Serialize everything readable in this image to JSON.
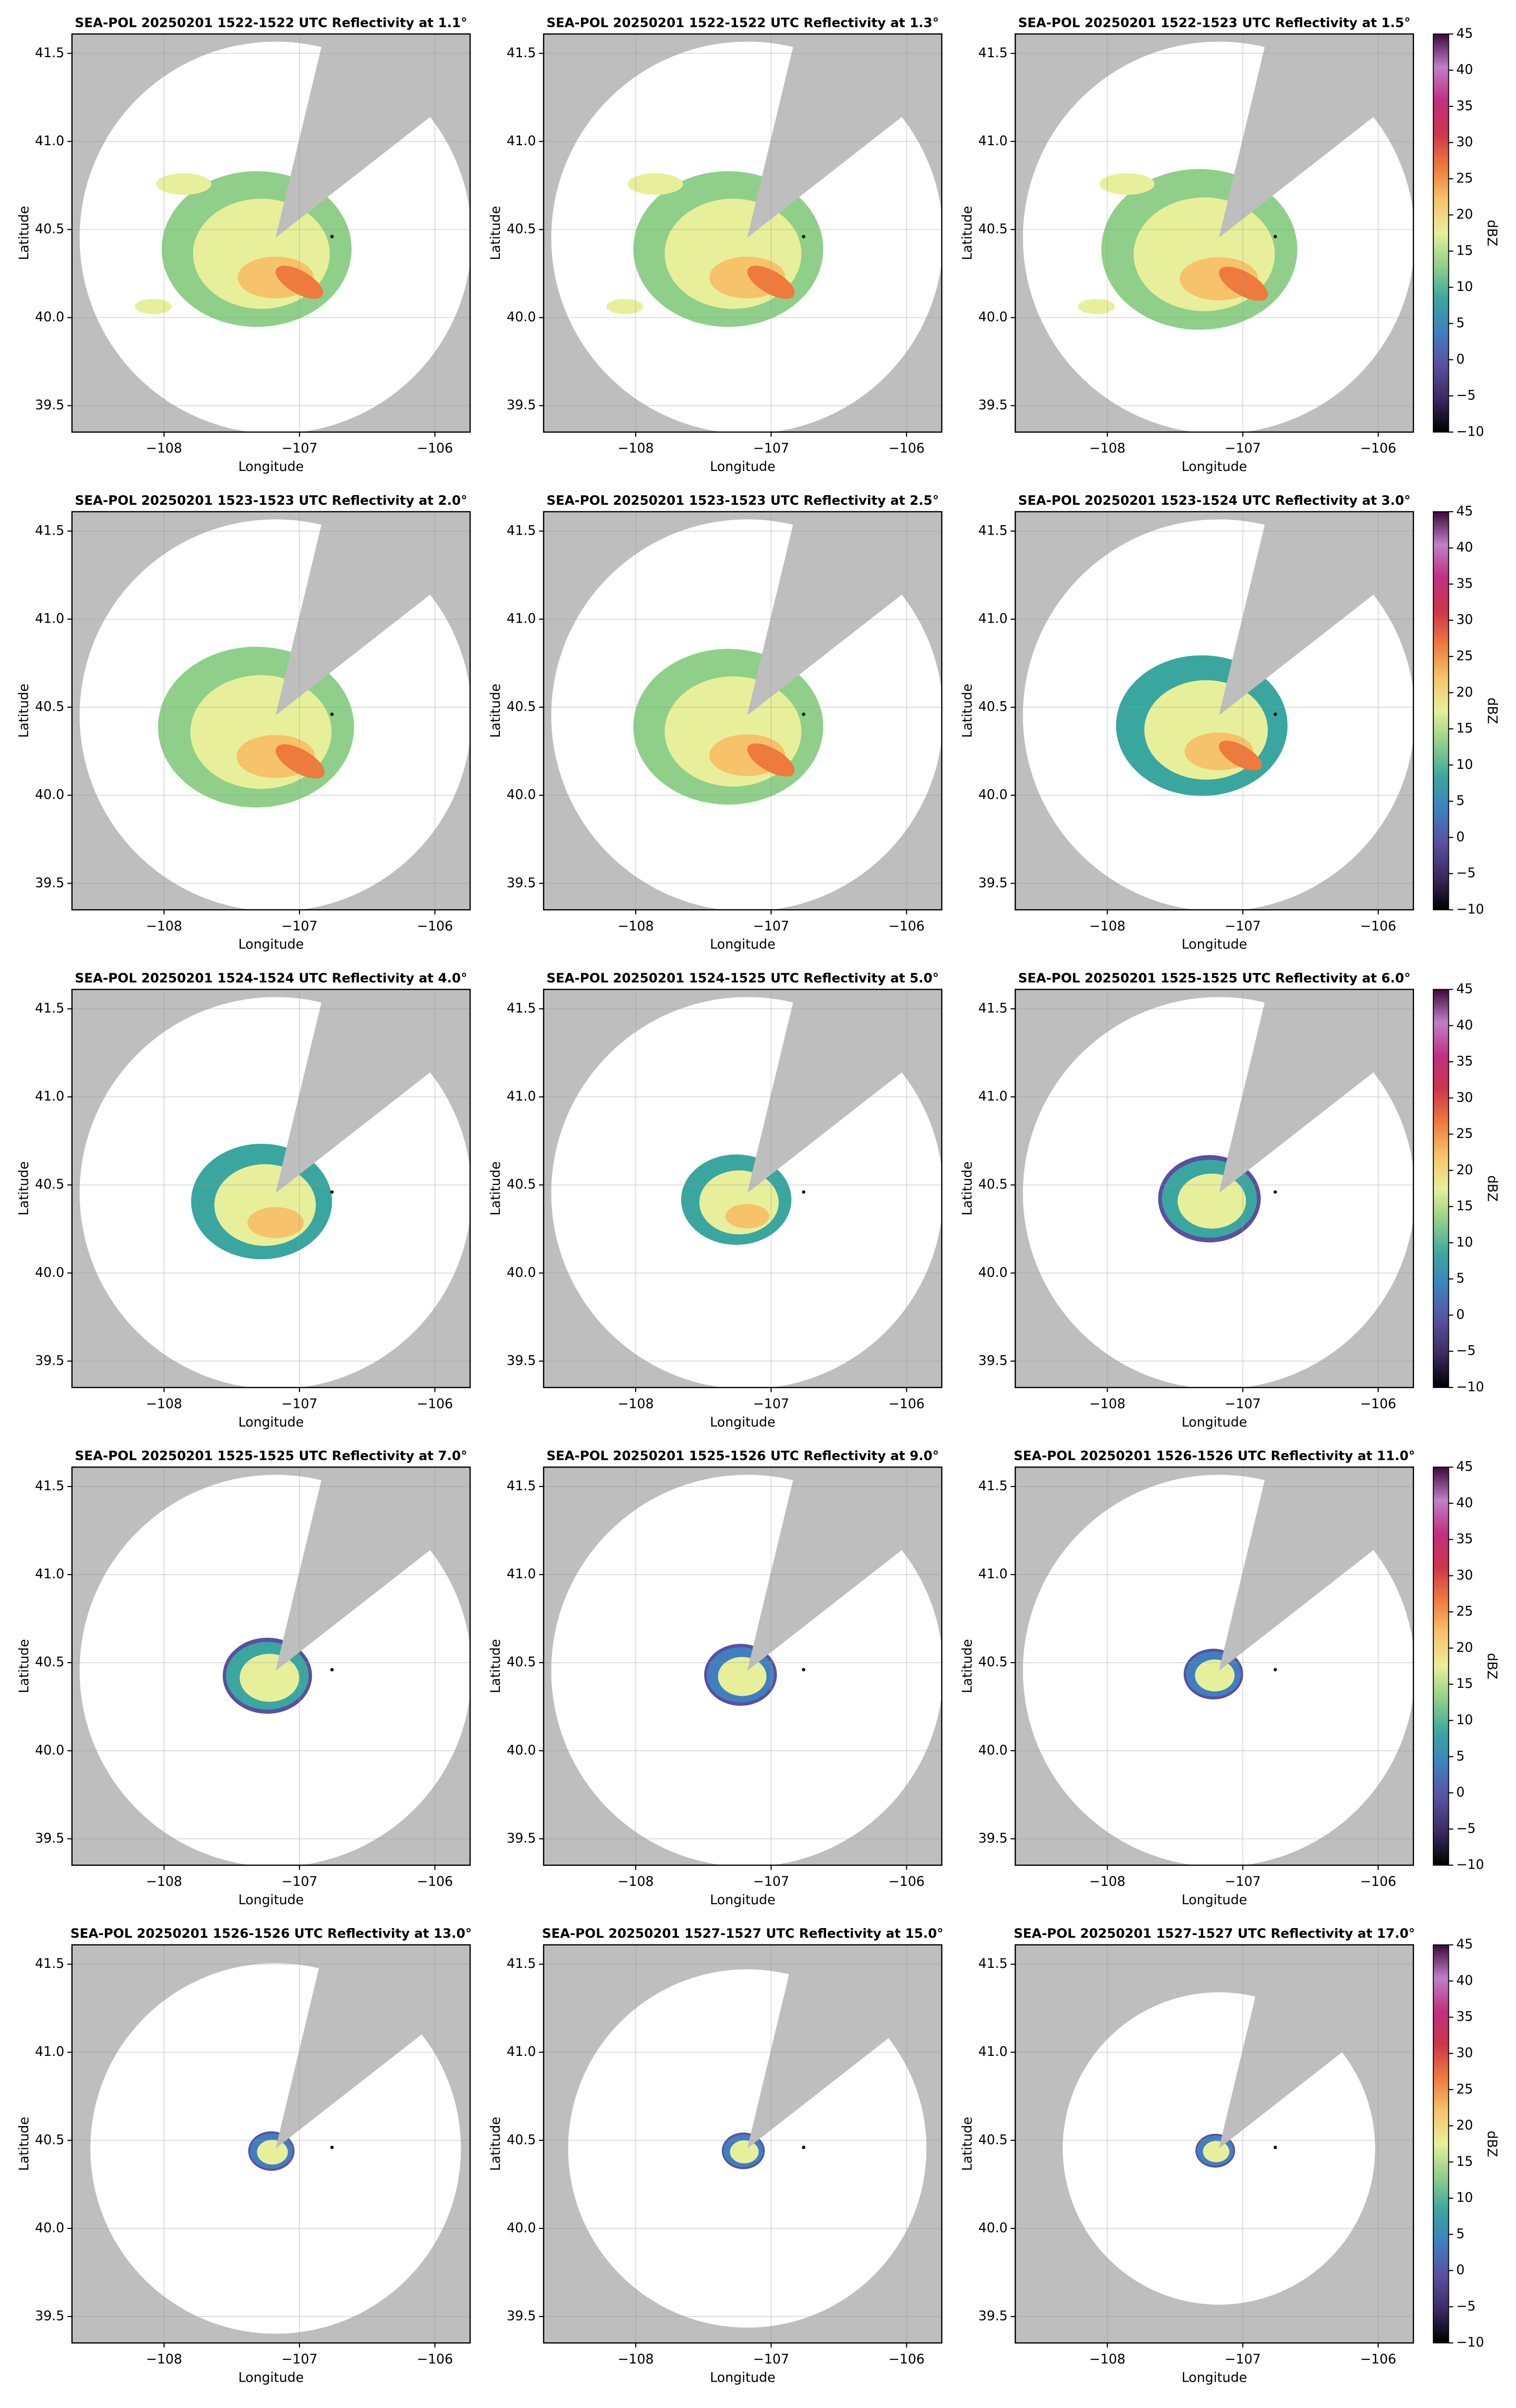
{
  "chart_data": [
    {
      "type": "ppi",
      "title": "SEA-POL 20250201 1522-1522 UTC Reflectivity at 1.1°",
      "xlabel": "Longitude",
      "ylabel": "Latitude",
      "xlim": [
        -108.68,
        -105.74
      ],
      "ylim": [
        39.35,
        41.61
      ],
      "xticks": [
        {
          "value": -108,
          "label": "−108"
        },
        {
          "value": -107,
          "label": "−107"
        },
        {
          "value": -106,
          "label": "−106"
        }
      ],
      "yticks": [
        39.5,
        {
          "value": 40,
          "label": "40.0"
        },
        40.5,
        {
          "value": 41,
          "label": "41.0"
        },
        41.5
      ],
      "grid": true,
      "background": "#bebebe",
      "marker": {
        "x": -106.76,
        "y": 40.46,
        "color": "#000000"
      }
    },
    {
      "type": "ppi",
      "title": "SEA-POL 20250201 1522-1522 UTC Reflectivity at 1.3°",
      "xlabel": "Longitude",
      "ylabel": "Latitude",
      "xlim": [
        -108.68,
        -105.74
      ],
      "ylim": [
        39.35,
        41.61
      ],
      "xticks": [
        {
          "value": -108,
          "label": "−108"
        },
        {
          "value": -107,
          "label": "−107"
        },
        {
          "value": -106,
          "label": "−106"
        }
      ],
      "yticks": [
        39.5,
        {
          "value": 40,
          "label": "40.0"
        },
        40.5,
        {
          "value": 41,
          "label": "41.0"
        },
        41.5
      ],
      "grid": true,
      "background": "#bebebe",
      "marker": {
        "x": -106.76,
        "y": 40.46,
        "color": "#000000"
      }
    },
    {
      "type": "ppi",
      "title": "SEA-POL 20250201 1522-1523 UTC Reflectivity at 1.5°",
      "xlabel": "Longitude",
      "ylabel": "Latitude",
      "xlim": [
        -108.68,
        -105.74
      ],
      "ylim": [
        39.35,
        41.61
      ],
      "xticks": [
        {
          "value": -108,
          "label": "−108"
        },
        {
          "value": -107,
          "label": "−107"
        },
        {
          "value": -106,
          "label": "−106"
        }
      ],
      "yticks": [
        39.5,
        {
          "value": 40,
          "label": "40.0"
        },
        40.5,
        {
          "value": 41,
          "label": "41.0"
        },
        41.5
      ],
      "grid": true,
      "background": "#bebebe",
      "marker": {
        "x": -106.76,
        "y": 40.46,
        "color": "#000000"
      },
      "colorbar": {
        "label": "dBZ",
        "lim": [
          -10,
          45
        ],
        "ticks": [
          {
            "value": -10,
            "label": "−10"
          },
          {
            "value": -5,
            "label": "−5"
          },
          0,
          5,
          10,
          15,
          20,
          25,
          30,
          35,
          40,
          45
        ],
        "colors": [
          "#000000",
          "#3b2a5e",
          "#5a4fa0",
          "#3f7fbf",
          "#3aa6a0",
          "#8fcf8a",
          "#e8ef9a",
          "#f6c36a",
          "#ee7a3e",
          "#d0344a",
          "#c0307f",
          "#c07fc9",
          "#3b0a3a"
        ]
      }
    },
    {
      "type": "ppi",
      "title": "SEA-POL 20250201 1523-1523 UTC Reflectivity at 2.0°",
      "xlabel": "Longitude",
      "ylabel": "Latitude",
      "xlim": [
        -108.68,
        -105.74
      ],
      "ylim": [
        39.35,
        41.61
      ],
      "xticks": [
        {
          "value": -108,
          "label": "−108"
        },
        {
          "value": -107,
          "label": "−107"
        },
        {
          "value": -106,
          "label": "−106"
        }
      ],
      "yticks": [
        39.5,
        {
          "value": 40,
          "label": "40.0"
        },
        40.5,
        {
          "value": 41,
          "label": "41.0"
        },
        41.5
      ],
      "grid": true,
      "background": "#bebebe",
      "marker": {
        "x": -106.76,
        "y": 40.46,
        "color": "#000000"
      }
    },
    {
      "type": "ppi",
      "title": "SEA-POL 20250201 1523-1523 UTC Reflectivity at 2.5°",
      "xlabel": "Longitude",
      "ylabel": "Latitude",
      "xlim": [
        -108.68,
        -105.74
      ],
      "ylim": [
        39.35,
        41.61
      ],
      "xticks": [
        {
          "value": -108,
          "label": "−108"
        },
        {
          "value": -107,
          "label": "−107"
        },
        {
          "value": -106,
          "label": "−106"
        }
      ],
      "yticks": [
        39.5,
        {
          "value": 40,
          "label": "40.0"
        },
        40.5,
        {
          "value": 41,
          "label": "41.0"
        },
        41.5
      ],
      "grid": true,
      "background": "#bebebe",
      "marker": {
        "x": -106.76,
        "y": 40.46,
        "color": "#000000"
      }
    },
    {
      "type": "ppi",
      "title": "SEA-POL 20250201 1523-1524 UTC Reflectivity at 3.0°",
      "xlabel": "Longitude",
      "ylabel": "Latitude",
      "xlim": [
        -108.68,
        -105.74
      ],
      "ylim": [
        39.35,
        41.61
      ],
      "xticks": [
        {
          "value": -108,
          "label": "−108"
        },
        {
          "value": -107,
          "label": "−107"
        },
        {
          "value": -106,
          "label": "−106"
        }
      ],
      "yticks": [
        39.5,
        {
          "value": 40,
          "label": "40.0"
        },
        40.5,
        {
          "value": 41,
          "label": "41.0"
        },
        41.5
      ],
      "grid": true,
      "background": "#bebebe",
      "marker": {
        "x": -106.76,
        "y": 40.46,
        "color": "#000000"
      },
      "colorbar": {
        "label": "dBZ",
        "lim": [
          -10,
          45
        ],
        "ticks": [
          {
            "value": -10,
            "label": "−10"
          },
          {
            "value": -5,
            "label": "−5"
          },
          0,
          5,
          10,
          15,
          20,
          25,
          30,
          35,
          40,
          45
        ],
        "colors": [
          "#000000",
          "#3b2a5e",
          "#5a4fa0",
          "#3f7fbf",
          "#3aa6a0",
          "#8fcf8a",
          "#e8ef9a",
          "#f6c36a",
          "#ee7a3e",
          "#d0344a",
          "#c0307f",
          "#c07fc9",
          "#3b0a3a"
        ]
      }
    },
    {
      "type": "ppi",
      "title": "SEA-POL 20250201 1524-1524 UTC Reflectivity at 4.0°",
      "xlabel": "Longitude",
      "ylabel": "Latitude",
      "xlim": [
        -108.68,
        -105.74
      ],
      "ylim": [
        39.35,
        41.61
      ],
      "xticks": [
        {
          "value": -108,
          "label": "−108"
        },
        {
          "value": -107,
          "label": "−107"
        },
        {
          "value": -106,
          "label": "−106"
        }
      ],
      "yticks": [
        39.5,
        {
          "value": 40,
          "label": "40.0"
        },
        40.5,
        {
          "value": 41,
          "label": "41.0"
        },
        41.5
      ],
      "grid": true,
      "background": "#bebebe",
      "marker": {
        "x": -106.76,
        "y": 40.46,
        "color": "#000000"
      }
    },
    {
      "type": "ppi",
      "title": "SEA-POL 20250201 1524-1525 UTC Reflectivity at 5.0°",
      "xlabel": "Longitude",
      "ylabel": "Latitude",
      "xlim": [
        -108.68,
        -105.74
      ],
      "ylim": [
        39.35,
        41.61
      ],
      "xticks": [
        {
          "value": -108,
          "label": "−108"
        },
        {
          "value": -107,
          "label": "−107"
        },
        {
          "value": -106,
          "label": "−106"
        }
      ],
      "yticks": [
        39.5,
        {
          "value": 40,
          "label": "40.0"
        },
        40.5,
        {
          "value": 41,
          "label": "41.0"
        },
        41.5
      ],
      "grid": true,
      "background": "#bebebe",
      "marker": {
        "x": -106.76,
        "y": 40.46,
        "color": "#000000"
      }
    },
    {
      "type": "ppi",
      "title": "SEA-POL 20250201 1525-1525 UTC Reflectivity at 6.0°",
      "xlabel": "Longitude",
      "ylabel": "Latitude",
      "xlim": [
        -108.68,
        -105.74
      ],
      "ylim": [
        39.35,
        41.61
      ],
      "xticks": [
        {
          "value": -108,
          "label": "−108"
        },
        {
          "value": -107,
          "label": "−107"
        },
        {
          "value": -106,
          "label": "−106"
        }
      ],
      "yticks": [
        39.5,
        {
          "value": 40,
          "label": "40.0"
        },
        40.5,
        {
          "value": 41,
          "label": "41.0"
        },
        41.5
      ],
      "grid": true,
      "background": "#bebebe",
      "marker": {
        "x": -106.76,
        "y": 40.46,
        "color": "#000000"
      },
      "colorbar": {
        "label": "dBZ",
        "lim": [
          -10,
          45
        ],
        "ticks": [
          {
            "value": -10,
            "label": "−10"
          },
          {
            "value": -5,
            "label": "−5"
          },
          0,
          5,
          10,
          15,
          20,
          25,
          30,
          35,
          40,
          45
        ],
        "colors": [
          "#000000",
          "#3b2a5e",
          "#5a4fa0",
          "#3f7fbf",
          "#3aa6a0",
          "#8fcf8a",
          "#e8ef9a",
          "#f6c36a",
          "#ee7a3e",
          "#d0344a",
          "#c0307f",
          "#c07fc9",
          "#3b0a3a"
        ]
      }
    },
    {
      "type": "ppi",
      "title": "SEA-POL 20250201 1525-1525 UTC Reflectivity at 7.0°",
      "xlabel": "Longitude",
      "ylabel": "Latitude",
      "xlim": [
        -108.68,
        -105.74
      ],
      "ylim": [
        39.35,
        41.61
      ],
      "xticks": [
        {
          "value": -108,
          "label": "−108"
        },
        {
          "value": -107,
          "label": "−107"
        },
        {
          "value": -106,
          "label": "−106"
        }
      ],
      "yticks": [
        39.5,
        {
          "value": 40,
          "label": "40.0"
        },
        40.5,
        {
          "value": 41,
          "label": "41.0"
        },
        41.5
      ],
      "grid": true,
      "background": "#bebebe",
      "marker": {
        "x": -106.76,
        "y": 40.46,
        "color": "#000000"
      }
    },
    {
      "type": "ppi",
      "title": "SEA-POL 20250201 1525-1526 UTC Reflectivity at 9.0°",
      "xlabel": "Longitude",
      "ylabel": "Latitude",
      "xlim": [
        -108.68,
        -105.74
      ],
      "ylim": [
        39.35,
        41.61
      ],
      "xticks": [
        {
          "value": -108,
          "label": "−108"
        },
        {
          "value": -107,
          "label": "−107"
        },
        {
          "value": -106,
          "label": "−106"
        }
      ],
      "yticks": [
        39.5,
        {
          "value": 40,
          "label": "40.0"
        },
        40.5,
        {
          "value": 41,
          "label": "41.0"
        },
        41.5
      ],
      "grid": true,
      "background": "#bebebe",
      "marker": {
        "x": -106.76,
        "y": 40.46,
        "color": "#000000"
      }
    },
    {
      "type": "ppi",
      "title": "SEA-POL 20250201 1526-1526 UTC Reflectivity at 11.0°",
      "xlabel": "Longitude",
      "ylabel": "Latitude",
      "xlim": [
        -108.68,
        -105.74
      ],
      "ylim": [
        39.35,
        41.61
      ],
      "xticks": [
        {
          "value": -108,
          "label": "−108"
        },
        {
          "value": -107,
          "label": "−107"
        },
        {
          "value": -106,
          "label": "−106"
        }
      ],
      "yticks": [
        39.5,
        {
          "value": 40,
          "label": "40.0"
        },
        40.5,
        {
          "value": 41,
          "label": "41.0"
        },
        41.5
      ],
      "grid": true,
      "background": "#bebebe",
      "marker": {
        "x": -106.76,
        "y": 40.46,
        "color": "#000000"
      },
      "colorbar": {
        "label": "dBZ",
        "lim": [
          -10,
          45
        ],
        "ticks": [
          {
            "value": -10,
            "label": "−10"
          },
          {
            "value": -5,
            "label": "−5"
          },
          0,
          5,
          10,
          15,
          20,
          25,
          30,
          35,
          40,
          45
        ],
        "colors": [
          "#000000",
          "#3b2a5e",
          "#5a4fa0",
          "#3f7fbf",
          "#3aa6a0",
          "#8fcf8a",
          "#e8ef9a",
          "#f6c36a",
          "#ee7a3e",
          "#d0344a",
          "#c0307f",
          "#c07fc9",
          "#3b0a3a"
        ]
      }
    },
    {
      "type": "ppi",
      "title": "SEA-POL 20250201 1526-1526 UTC Reflectivity at 13.0°",
      "xlabel": "Longitude",
      "ylabel": "Latitude",
      "xlim": [
        -108.68,
        -105.74
      ],
      "ylim": [
        39.35,
        41.61
      ],
      "xticks": [
        {
          "value": -108,
          "label": "−108"
        },
        {
          "value": -107,
          "label": "−107"
        },
        {
          "value": -106,
          "label": "−106"
        }
      ],
      "yticks": [
        39.5,
        {
          "value": 40,
          "label": "40.0"
        },
        40.5,
        {
          "value": 41,
          "label": "41.0"
        },
        41.5
      ],
      "grid": true,
      "background": "#bebebe",
      "marker": {
        "x": -106.76,
        "y": 40.46,
        "color": "#000000"
      }
    },
    {
      "type": "ppi",
      "title": "SEA-POL 20250201 1527-1527 UTC Reflectivity at 15.0°",
      "xlabel": "Longitude",
      "ylabel": "Latitude",
      "xlim": [
        -108.68,
        -105.74
      ],
      "ylim": [
        39.35,
        41.61
      ],
      "xticks": [
        {
          "value": -108,
          "label": "−108"
        },
        {
          "value": -107,
          "label": "−107"
        },
        {
          "value": -106,
          "label": "−106"
        }
      ],
      "yticks": [
        39.5,
        {
          "value": 40,
          "label": "40.0"
        },
        40.5,
        {
          "value": 41,
          "label": "41.0"
        },
        41.5
      ],
      "grid": true,
      "background": "#bebebe",
      "marker": {
        "x": -106.76,
        "y": 40.46,
        "color": "#000000"
      }
    },
    {
      "type": "ppi",
      "title": "SEA-POL 20250201 1527-1527 UTC Reflectivity at 17.0°",
      "xlabel": "Longitude",
      "ylabel": "Latitude",
      "xlim": [
        -108.68,
        -105.74
      ],
      "ylim": [
        39.35,
        41.61
      ],
      "xticks": [
        {
          "value": -108,
          "label": "−108"
        },
        {
          "value": -107,
          "label": "−107"
        },
        {
          "value": -106,
          "label": "−106"
        }
      ],
      "yticks": [
        39.5,
        {
          "value": 40,
          "label": "40.0"
        },
        40.5,
        {
          "value": 41,
          "label": "41.0"
        },
        41.5
      ],
      "grid": true,
      "background": "#bebebe",
      "marker": {
        "x": -106.76,
        "y": 40.46,
        "color": "#000000"
      },
      "colorbar": {
        "label": "dBZ",
        "lim": [
          -10,
          45
        ],
        "ticks": [
          {
            "value": -10,
            "label": "−10"
          },
          {
            "value": -5,
            "label": "−5"
          },
          0,
          5,
          10,
          15,
          20,
          25,
          30,
          35,
          40,
          45
        ],
        "colors": [
          "#000000",
          "#3b2a5e",
          "#5a4fa0",
          "#3f7fbf",
          "#3aa6a0",
          "#8fcf8a",
          "#e8ef9a",
          "#f6c36a",
          "#ee7a3e",
          "#d0344a",
          "#c0307f",
          "#c07fc9",
          "#3b0a3a"
        ]
      }
    }
  ]
}
